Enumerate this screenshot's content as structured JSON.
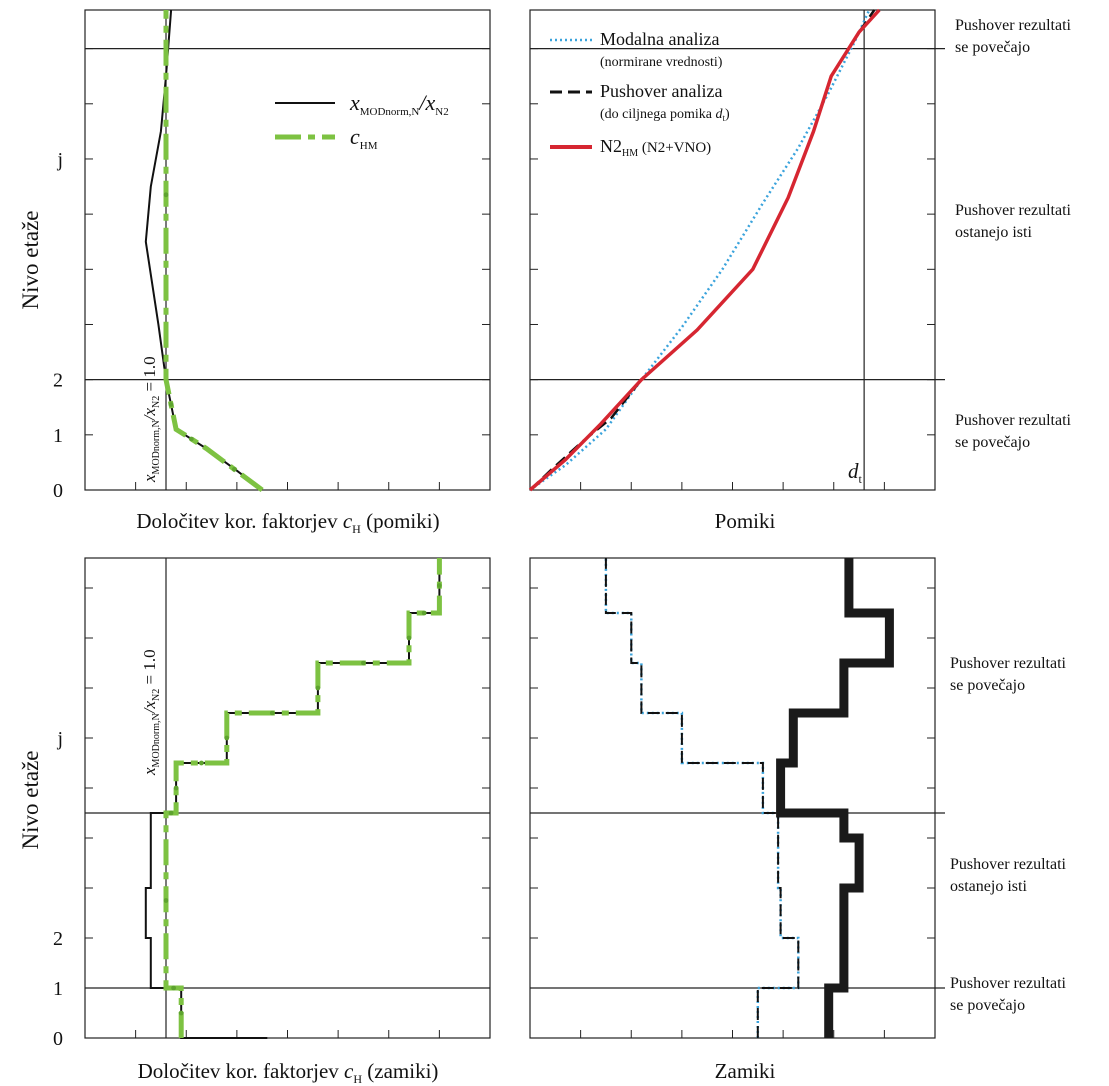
{
  "figure": {
    "y_axis_title": "Nivo etaže",
    "tl_xlabel_pre": "Določitev kor. faktorjev ",
    "tl_xlabel_sym": "c",
    "tl_xlabel_sub": "H",
    "tl_xlabel_post": " (pomiki)",
    "tr_xlabel": "Pomiki",
    "bl_xlabel_pre": "Določitev kor. faktorjev ",
    "bl_xlabel_sym": "c",
    "bl_xlabel_sub": "H",
    "bl_xlabel_post": " (zamiki)",
    "br_xlabel": "Zamiki",
    "ratio_label": {
      "x": "x",
      "x_sub": "MODnorm,N",
      "slash": "/x",
      "x2_sub": "N2",
      "eq": " = 1.0"
    },
    "dt_label": {
      "sym": "d",
      "sub": "t"
    },
    "legend_left": [
      {
        "sym": "x",
        "sub": "MODnorm,N",
        "slash": "/x",
        "sub2": "N2"
      },
      {
        "sym": "c",
        "sub": "HM"
      }
    ],
    "legend_right": [
      {
        "name": "Modalna analiza",
        "sub": "(normirane vrednosti)"
      },
      {
        "name": "Pushover analiza",
        "sub_pre": "(do ciljnega pomika ",
        "sub_sym": "d",
        "sub_sub": "t",
        "sub_post": ")"
      },
      {
        "name": "N2",
        "name_sub": "HM",
        "name_post": " (N2+VNO)"
      }
    ],
    "annotations_top": [
      [
        "Pushover rezultati",
        "se povečajo"
      ],
      [
        "Pushover rezultati",
        "ostanejo isti"
      ],
      [
        "Pushover rezultati",
        "se povečajo"
      ]
    ],
    "annotations_bottom": [
      [
        "Pushover rezultati",
        "se povečajo"
      ],
      [
        "Pushover rezultati",
        "ostanejo isti"
      ],
      [
        "Pushover rezultati",
        "se povečajo"
      ]
    ],
    "colors": {
      "black": "#111111",
      "green": "#7dc242",
      "blue": "#3aa3dc",
      "red": "#d62631",
      "dark_red": "#7a1c22"
    }
  },
  "chart_data": [
    {
      "id": "top-left",
      "type": "line",
      "xlabel": "Določitev kor. faktorjev cH (pomiki)",
      "ylabel": "Nivo etaže",
      "yticks": [
        {
          "v": 0,
          "label": "0"
        },
        {
          "v": 1,
          "label": "1"
        },
        {
          "v": 2,
          "label": "2"
        },
        {
          "v": 6,
          "label": "j"
        }
      ],
      "ylim": [
        0,
        8.7
      ],
      "xlim": [
        0,
        8
      ],
      "ref_lines_y": [
        2,
        8
      ],
      "ref_line_x": 1.6,
      "series": [
        {
          "name": "xMODnorm,N/xN2",
          "points": [
            [
              3.5,
              0
            ],
            [
              3.0,
              0.35
            ],
            [
              2.4,
              0.75
            ],
            [
              1.8,
              1.1
            ],
            [
              1.6,
              2
            ],
            [
              1.45,
              3
            ],
            [
              1.2,
              4.5
            ],
            [
              1.3,
              5.5
            ],
            [
              1.5,
              6.5
            ],
            [
              1.6,
              7.5
            ],
            [
              1.7,
              8.7
            ]
          ]
        },
        {
          "name": "cHM",
          "points": [
            [
              3.5,
              0
            ],
            [
              2.4,
              0.75
            ],
            [
              1.8,
              1.1
            ],
            [
              1.6,
              2
            ],
            [
              1.6,
              8.7
            ]
          ]
        }
      ]
    },
    {
      "id": "top-right",
      "type": "line",
      "xlabel": "Pomiki",
      "yticks": [
        0,
        1,
        2,
        6
      ],
      "ylim": [
        0,
        8.7
      ],
      "xlim": [
        0,
        8
      ],
      "ref_lines_y": [
        2,
        8
      ],
      "ref_line_x": 6.6,
      "series": [
        {
          "name": "Modalna analiza",
          "points": [
            [
              0,
              0
            ],
            [
              0.7,
              0.45
            ],
            [
              1.5,
              1.1
            ],
            [
              2.2,
              2
            ],
            [
              3,
              2.95
            ],
            [
              3.8,
              4
            ],
            [
              4.6,
              5.2
            ],
            [
              5.3,
              6.2
            ],
            [
              5.9,
              7.2
            ],
            [
              6.4,
              8.1
            ],
            [
              6.7,
              8.7
            ]
          ]
        },
        {
          "name": "Pushover analiza",
          "points": [
            [
              0,
              0
            ],
            [
              0.4,
              0.35
            ],
            [
              1.0,
              0.85
            ],
            [
              1.6,
              1.3
            ],
            [
              2.2,
              2
            ],
            [
              3.3,
              2.9
            ],
            [
              4.4,
              4
            ],
            [
              5.1,
              5.3
            ],
            [
              5.6,
              6.5
            ],
            [
              5.95,
              7.5
            ],
            [
              6.5,
              8.3
            ],
            [
              6.8,
              8.7
            ]
          ]
        },
        {
          "name": "N2HM (N2+VNO)",
          "points": [
            [
              0,
              0
            ],
            [
              0.7,
              0.55
            ],
            [
              1.4,
              1.2
            ],
            [
              2.2,
              2
            ],
            [
              3.3,
              2.9
            ],
            [
              4.4,
              4
            ],
            [
              5.1,
              5.3
            ],
            [
              5.6,
              6.5
            ],
            [
              5.95,
              7.5
            ],
            [
              6.5,
              8.3
            ],
            [
              6.9,
              8.7
            ]
          ]
        }
      ]
    },
    {
      "id": "bottom-left",
      "type": "line",
      "xlabel": "Določitev kor. faktorjev cH (zamiki)",
      "ylabel": "Nivo etaže",
      "yticks": [
        {
          "v": 0,
          "label": "0"
        },
        {
          "v": 1,
          "label": "1"
        },
        {
          "v": 2,
          "label": "2"
        },
        {
          "v": 6,
          "label": "j"
        }
      ],
      "ylim": [
        0,
        9.6
      ],
      "xlim": [
        0,
        8
      ],
      "ref_lines_y": [
        1,
        4.5
      ],
      "ref_line_x": 1.6,
      "series": [
        {
          "name": "xMODnorm,N/xN2",
          "points": [
            [
              3.6,
              0
            ],
            [
              1.9,
              0
            ],
            [
              1.9,
              1
            ],
            [
              1.3,
              1
            ],
            [
              1.3,
              2
            ],
            [
              1.2,
              2
            ],
            [
              1.2,
              3
            ],
            [
              1.3,
              3
            ],
            [
              1.3,
              4.5
            ],
            [
              1.8,
              4.5
            ],
            [
              1.8,
              5.5
            ],
            [
              2.8,
              5.5
            ],
            [
              2.8,
              6.5
            ],
            [
              4.6,
              6.5
            ],
            [
              4.6,
              7.5
            ],
            [
              6.4,
              7.5
            ],
            [
              6.4,
              8.5
            ],
            [
              7.0,
              8.5
            ],
            [
              7.0,
              9.6
            ]
          ]
        },
        {
          "name": "cHM",
          "points": [
            [
              1.9,
              0
            ],
            [
              1.9,
              1
            ],
            [
              1.6,
              1
            ],
            [
              1.6,
              4.5
            ],
            [
              1.8,
              4.5
            ],
            [
              1.8,
              5.5
            ],
            [
              2.8,
              5.5
            ],
            [
              2.8,
              6.5
            ],
            [
              4.6,
              6.5
            ],
            [
              4.6,
              7.5
            ],
            [
              6.4,
              7.5
            ],
            [
              6.4,
              8.5
            ],
            [
              7.0,
              8.5
            ],
            [
              7.0,
              9.6
            ]
          ]
        }
      ]
    },
    {
      "id": "bottom-right",
      "type": "line",
      "xlabel": "Zamiki",
      "yticks": [
        0,
        1,
        2,
        6
      ],
      "ylim": [
        0,
        9.6
      ],
      "xlim": [
        0,
        8
      ],
      "ref_lines_y": [
        1,
        4.5
      ],
      "series": [
        {
          "name": "Modalna analiza",
          "points": [
            [
              4.5,
              0
            ],
            [
              4.5,
              1
            ],
            [
              5.3,
              1
            ],
            [
              5.3,
              2
            ],
            [
              4.95,
              2
            ],
            [
              4.95,
              3
            ],
            [
              4.9,
              3
            ],
            [
              4.9,
              4.5
            ],
            [
              4.6,
              4.5
            ],
            [
              4.6,
              5.5
            ],
            [
              3.0,
              5.5
            ],
            [
              3.0,
              6.5
            ],
            [
              2.2,
              6.5
            ],
            [
              2.2,
              7.5
            ],
            [
              2.0,
              7.5
            ],
            [
              2.0,
              8.5
            ],
            [
              1.5,
              8.5
            ],
            [
              1.5,
              9.6
            ]
          ]
        },
        {
          "name": "Pushover analiza",
          "points": [
            [
              4.5,
              0
            ],
            [
              4.5,
              1
            ],
            [
              5.3,
              1
            ],
            [
              5.3,
              2
            ],
            [
              4.95,
              2
            ],
            [
              4.95,
              3
            ],
            [
              4.9,
              3
            ],
            [
              4.9,
              4.5
            ],
            [
              4.6,
              4.5
            ],
            [
              4.6,
              5.5
            ],
            [
              3.0,
              5.5
            ],
            [
              3.0,
              6.5
            ],
            [
              2.2,
              6.5
            ],
            [
              2.2,
              7.5
            ],
            [
              2.0,
              7.5
            ],
            [
              2.0,
              8.5
            ],
            [
              1.5,
              8.5
            ],
            [
              1.5,
              9.6
            ]
          ]
        },
        {
          "name": "N2HM (N2+VNO)",
          "points": [
            [
              5.9,
              0
            ],
            [
              5.9,
              1
            ],
            [
              6.2,
              1
            ],
            [
              6.2,
              3
            ],
            [
              6.5,
              3
            ],
            [
              6.5,
              4
            ],
            [
              6.2,
              4
            ],
            [
              6.2,
              4.5
            ],
            [
              4.95,
              4.5
            ],
            [
              4.95,
              5.5
            ],
            [
              5.2,
              5.5
            ],
            [
              5.2,
              6.5
            ],
            [
              6.2,
              6.5
            ],
            [
              6.2,
              7.5
            ],
            [
              7.1,
              7.5
            ],
            [
              7.1,
              8.5
            ],
            [
              6.3,
              8.5
            ],
            [
              6.3,
              9.6
            ]
          ]
        }
      ]
    }
  ]
}
